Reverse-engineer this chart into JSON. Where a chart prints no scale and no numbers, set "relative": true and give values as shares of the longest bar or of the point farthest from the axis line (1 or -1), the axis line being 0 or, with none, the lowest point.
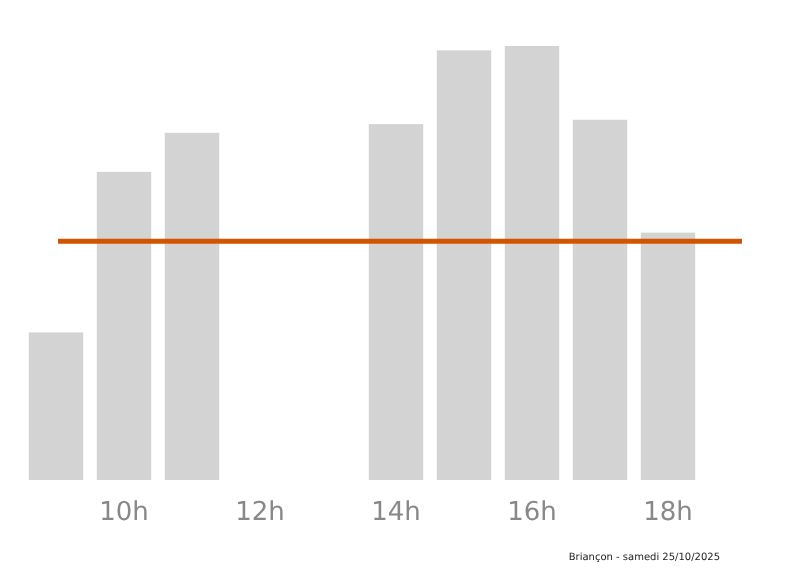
{
  "chart_data": {
    "type": "bar",
    "relative": true,
    "categories": [
      null,
      "10h",
      null,
      "12h",
      null,
      "14h",
      null,
      "16h",
      null,
      "18h"
    ],
    "values": [
      0.34,
      0.71,
      0.8,
      0,
      0,
      0.82,
      0.99,
      1,
      0.83,
      0.57
    ],
    "color": "#d3d3d3",
    "ref_lines": [
      {
        "axis": "y",
        "value": 0.55,
        "color": "#d35400"
      }
    ],
    "annotations": [
      "Briançon - samedi 25/10/2025"
    ]
  }
}
